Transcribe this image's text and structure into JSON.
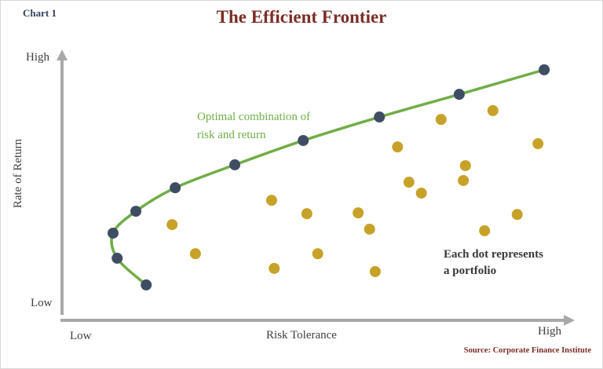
{
  "header": {
    "chart_label": "Chart 1",
    "title": "The Efficient Frontier"
  },
  "axes": {
    "y_label": "Rate of Return",
    "y_high": "High",
    "y_low": "Low",
    "x_label": "Risk Tolerance",
    "x_low": "Low",
    "x_high": "High"
  },
  "annotations": {
    "optimal_line1": "Optimal combination of",
    "optimal_line2": "risk and return",
    "dots_line1": "Each dot represents",
    "dots_line2": "a portfolio",
    "source": "Source: Corporate Finance Institute"
  },
  "colors": {
    "title": "#7b2d26",
    "chart_label": "#33425a",
    "frontier_line": "#70ad47",
    "frontier_marker": "#3f4d63",
    "portfolio_dot": "#c7a229",
    "axis_arrow": "#a8a8a8",
    "annotation_green": "#6fae46",
    "source_text": "#7b2d26"
  },
  "chart_data": {
    "type": "scatter",
    "title": "The Efficient Frontier",
    "xlabel": "Risk Tolerance",
    "ylabel": "Rate of Return",
    "xlim": [
      0,
      100
    ],
    "ylim": [
      0,
      100
    ],
    "x_range_labels": [
      "Low",
      "High"
    ],
    "y_range_labels": [
      "Low",
      "High"
    ],
    "grid": false,
    "legend": false,
    "series": [
      {
        "name": "Efficient frontier",
        "type": "line+scatter",
        "line_color": "#70ad47",
        "marker_color": "#3f4d63",
        "points": [
          [
            16.7,
            11.2
          ],
          [
            11.1,
            21.2
          ],
          [
            10.3,
            30.6
          ],
          [
            14.7,
            38.8
          ],
          [
            22.3,
            47.6
          ],
          [
            33.8,
            56.2
          ],
          [
            47.0,
            65.3
          ],
          [
            61.7,
            74.1
          ],
          [
            77.1,
            82.6
          ],
          [
            93.5,
            91.8
          ]
        ]
      },
      {
        "name": "Portfolios",
        "type": "scatter",
        "marker_color": "#c7a229",
        "points": [
          [
            21.7,
            33.8
          ],
          [
            26.2,
            22.9
          ],
          [
            40.9,
            42.9
          ],
          [
            41.4,
            17.4
          ],
          [
            47.7,
            37.9
          ],
          [
            49.8,
            22.9
          ],
          [
            57.6,
            38.2
          ],
          [
            59.8,
            32.1
          ],
          [
            60.9,
            16.2
          ],
          [
            65.2,
            62.9
          ],
          [
            67.4,
            49.7
          ],
          [
            69.8,
            45.6
          ],
          [
            73.6,
            73.2
          ],
          [
            77.9,
            50.3
          ],
          [
            78.3,
            55.9
          ],
          [
            82.0,
            31.5
          ],
          [
            83.6,
            76.5
          ],
          [
            88.3,
            37.6
          ],
          [
            92.3,
            64.1
          ]
        ]
      }
    ]
  }
}
